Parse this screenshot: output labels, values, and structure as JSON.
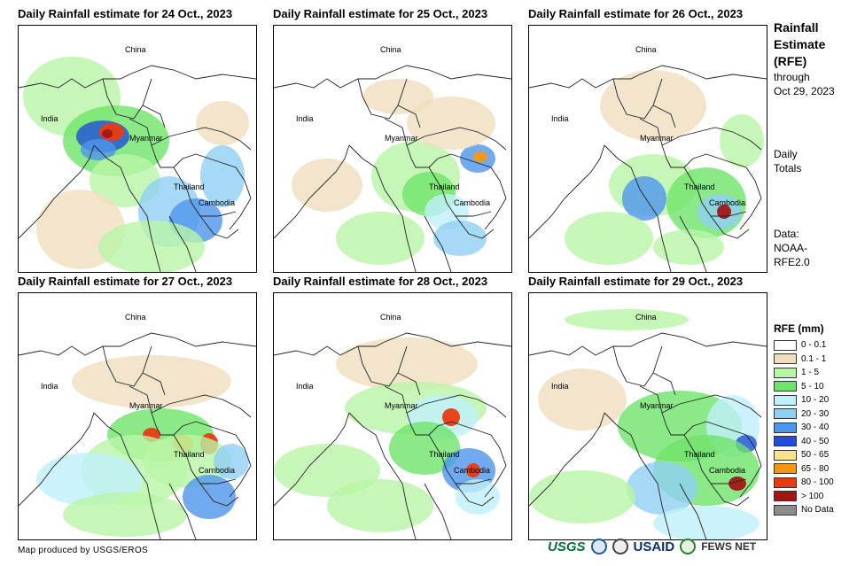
{
  "panels": [
    {
      "title": "Daily Rainfall estimate for 24 Oct., 2023",
      "labels": {
        "china": "China",
        "india": "India",
        "myanmar": "Myanmar",
        "thailand": "Thailand",
        "cambodia": "Cambodia"
      }
    },
    {
      "title": "Daily Rainfall estimate for 25 Oct., 2023",
      "labels": {
        "china": "China",
        "india": "India",
        "myanmar": "Myanmar",
        "thailand": "Thailand",
        "cambodia": "Cambodia"
      }
    },
    {
      "title": "Daily Rainfall estimate for 26 Oct., 2023",
      "labels": {
        "china": "China",
        "india": "India",
        "myanmar": "Myanmar",
        "thailand": "Thailand",
        "cambodia": "Cambodia"
      }
    },
    {
      "title": "Daily Rainfall estimate for 27 Oct., 2023",
      "labels": {
        "china": "China",
        "india": "India",
        "myanmar": "Myanmar",
        "thailand": "Thailand",
        "cambodia": "Cambodia"
      }
    },
    {
      "title": "Daily Rainfall estimate for 28 Oct., 2023",
      "labels": {
        "china": "China",
        "india": "India",
        "myanmar": "Myanmar",
        "thailand": "Thailand",
        "cambodia": "Cambodia"
      }
    },
    {
      "title": "Daily Rainfall estimate for 29 Oct., 2023",
      "labels": {
        "china": "China",
        "india": "India",
        "myanmar": "Myanmar",
        "thailand": "Thailand",
        "cambodia": "Cambodia"
      }
    }
  ],
  "sidebar": {
    "title_line1": "Rainfall",
    "title_line2": "Estimate",
    "title_line3": "(RFE)",
    "through": "through",
    "date": "Oct 29, 2023",
    "daily1": "Daily",
    "daily2": "Totals",
    "data1": "Data:",
    "data2": "NOAA-",
    "data3": "RFE2.0"
  },
  "legend": {
    "title": "RFE (mm)",
    "items": [
      {
        "label": "0 - 0.1",
        "color": "#ffffff"
      },
      {
        "label": "0.1 - 1",
        "color": "#efdfbf"
      },
      {
        "label": "1 - 5",
        "color": "#b9f5a6"
      },
      {
        "label": "5 - 10",
        "color": "#6fe46a"
      },
      {
        "label": "10 - 20",
        "color": "#bff0fb"
      },
      {
        "label": "20 - 30",
        "color": "#8fd0f3"
      },
      {
        "label": "30 - 40",
        "color": "#4f95ec"
      },
      {
        "label": "40 - 50",
        "color": "#1f4fd6"
      },
      {
        "label": "50 - 65",
        "color": "#fbe487"
      },
      {
        "label": "65 - 80",
        "color": "#f5980f"
      },
      {
        "label": "80 - 100",
        "color": "#e93b12"
      },
      {
        "label": "> 100",
        "color": "#a31616"
      },
      {
        "label": "No Data",
        "color": "#8c8c8c"
      }
    ]
  },
  "footer": {
    "credit": "Map produced by USGS/EROS",
    "logos": {
      "usgs": "USGS",
      "usaid": "USAID",
      "fews": "FEWS NET"
    }
  }
}
